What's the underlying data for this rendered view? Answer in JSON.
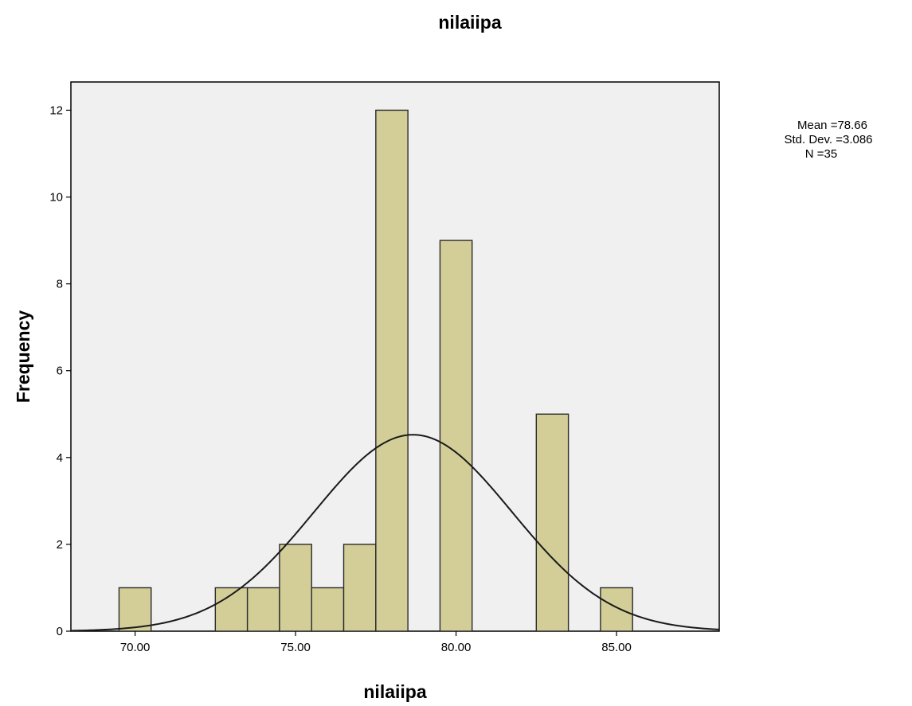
{
  "chart_data": {
    "type": "bar",
    "subtype": "histogram",
    "title": "nilaiipa",
    "xlabel": "nilaiipa",
    "ylabel": "Frequency",
    "xlim": [
      68.0,
      88.2
    ],
    "ylim": [
      0,
      12.65
    ],
    "x_ticks": [
      70,
      75,
      80,
      85
    ],
    "x_tick_labels": [
      "70.00",
      "75.00",
      "80.00",
      "85.00"
    ],
    "y_ticks": [
      0,
      2,
      4,
      6,
      8,
      10,
      12
    ],
    "y_tick_labels": [
      "0",
      "2",
      "4",
      "6",
      "8",
      "10",
      "12"
    ],
    "bin_width": 1,
    "bins": [
      {
        "center": 70,
        "count": 1
      },
      {
        "center": 73,
        "count": 1
      },
      {
        "center": 74,
        "count": 1
      },
      {
        "center": 75,
        "count": 2
      },
      {
        "center": 76,
        "count": 1
      },
      {
        "center": 77,
        "count": 2
      },
      {
        "center": 78,
        "count": 12
      },
      {
        "center": 80,
        "count": 9
      },
      {
        "center": 83,
        "count": 5
      },
      {
        "center": 85,
        "count": 1
      }
    ],
    "normal_curve": {
      "mean": 78.66,
      "std_dev": 3.086,
      "n": 35
    },
    "stats": [
      "Mean =78.66",
      "Std. Dev. =3.086",
      "N =35"
    ],
    "grid": false,
    "legend": "none",
    "colors": {
      "bar_fill": "#d3ce98",
      "bar_stroke": "#2a2a2a",
      "plot_background": "#f0f0f0",
      "curve": "#1a1a1a"
    }
  }
}
